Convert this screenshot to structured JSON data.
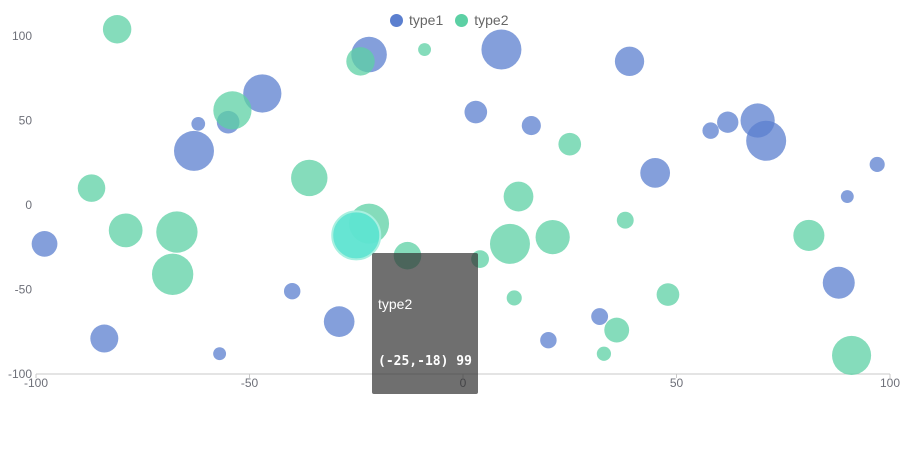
{
  "legend": [
    {
      "name": "type1",
      "color": "#5b7fcf"
    },
    {
      "name": "type2",
      "color": "#5cd0a4"
    }
  ],
  "tooltip": {
    "series": "type2",
    "value": "(-25,-18) 99"
  },
  "chart_data": {
    "type": "scatter",
    "title": "",
    "xlabel": "",
    "ylabel": "",
    "xlim": [
      -100,
      100
    ],
    "ylim": [
      -100,
      100
    ],
    "x_ticks": [
      "-100",
      "-50",
      "0",
      "50",
      "100"
    ],
    "y_ticks": [
      "-100",
      "-50",
      "0",
      "50",
      "100"
    ],
    "grid": false,
    "legend_position": "top-center",
    "highlighted_point": {
      "series": "type2",
      "x": -25,
      "y": -18,
      "size": 99
    },
    "series": [
      {
        "name": "type1",
        "color": "#5b7fcf",
        "points": [
          {
            "x": -98,
            "y": -23,
            "size": 58
          },
          {
            "x": -84,
            "y": -79,
            "size": 63
          },
          {
            "x": -63,
            "y": 32,
            "size": 90
          },
          {
            "x": -62,
            "y": 48,
            "size": 31
          },
          {
            "x": -55,
            "y": 49,
            "size": 51
          },
          {
            "x": -47,
            "y": 66,
            "size": 86
          },
          {
            "x": -57,
            "y": -88,
            "size": 29
          },
          {
            "x": -40,
            "y": -51,
            "size": 37
          },
          {
            "x": -29,
            "y": -69,
            "size": 69
          },
          {
            "x": -22,
            "y": 89,
            "size": 80
          },
          {
            "x": 3,
            "y": 55,
            "size": 51
          },
          {
            "x": 9,
            "y": 92,
            "size": 90
          },
          {
            "x": 16,
            "y": 47,
            "size": 43
          },
          {
            "x": 20,
            "y": -80,
            "size": 37
          },
          {
            "x": 32,
            "y": -66,
            "size": 38
          },
          {
            "x": 39,
            "y": 85,
            "size": 66
          },
          {
            "x": 45,
            "y": 19,
            "size": 67
          },
          {
            "x": 58,
            "y": 44,
            "size": 37
          },
          {
            "x": 62,
            "y": 49,
            "size": 48
          },
          {
            "x": 69,
            "y": 50,
            "size": 77
          },
          {
            "x": 71,
            "y": 38,
            "size": 90
          },
          {
            "x": 88,
            "y": -46,
            "size": 72
          },
          {
            "x": 90,
            "y": 5,
            "size": 29
          },
          {
            "x": 97,
            "y": 24,
            "size": 34
          }
        ]
      },
      {
        "name": "type2",
        "color": "#5cd0a4",
        "points": [
          {
            "x": -81,
            "y": 104,
            "size": 64
          },
          {
            "x": -87,
            "y": 10,
            "size": 62
          },
          {
            "x": -79,
            "y": -15,
            "size": 76
          },
          {
            "x": -67,
            "y": -16,
            "size": 93
          },
          {
            "x": -68,
            "y": -41,
            "size": 93
          },
          {
            "x": -54,
            "y": 56,
            "size": 86
          },
          {
            "x": -36,
            "y": 16,
            "size": 82
          },
          {
            "x": -24,
            "y": 85,
            "size": 64
          },
          {
            "x": -22,
            "y": -11,
            "size": 90
          },
          {
            "x": -13,
            "y": -30,
            "size": 62
          },
          {
            "x": -9,
            "y": 92,
            "size": 29
          },
          {
            "x": 4,
            "y": -32,
            "size": 40
          },
          {
            "x": 11,
            "y": -23,
            "size": 90
          },
          {
            "x": 12,
            "y": -55,
            "size": 34
          },
          {
            "x": 13,
            "y": 5,
            "size": 67
          },
          {
            "x": 21,
            "y": -19,
            "size": 77
          },
          {
            "x": 25,
            "y": 36,
            "size": 51
          },
          {
            "x": 33,
            "y": -88,
            "size": 32
          },
          {
            "x": 36,
            "y": -74,
            "size": 56
          },
          {
            "x": 38,
            "y": -9,
            "size": 38
          },
          {
            "x": 48,
            "y": -53,
            "size": 51
          },
          {
            "x": 81,
            "y": -18,
            "size": 70
          },
          {
            "x": 91,
            "y": -89,
            "size": 88
          }
        ]
      }
    ]
  }
}
